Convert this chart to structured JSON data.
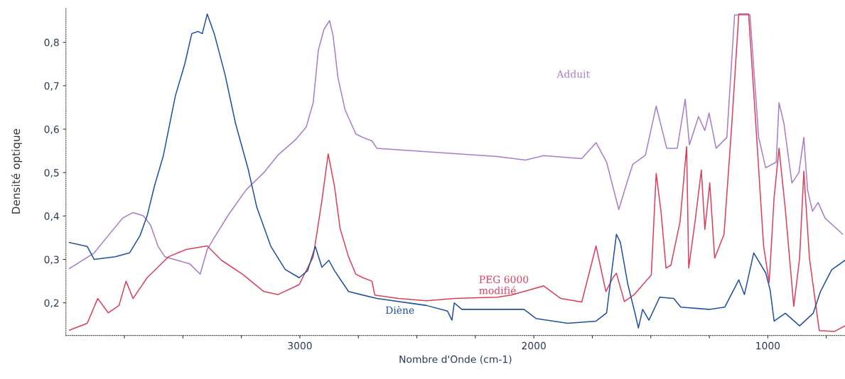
{
  "chart_data": {
    "type": "line",
    "xlabel": "Nombre d'Onde (cm-1)",
    "ylabel": "Densité optique",
    "xlim": [
      4000,
      670
    ],
    "ylim": [
      0.125,
      0.88
    ],
    "xticks": [
      {
        "value": 3750,
        "label": null
      },
      {
        "value": 3500,
        "label": null
      },
      {
        "value": 3250,
        "label": null
      },
      3000,
      {
        "value": 2750,
        "label": null
      },
      {
        "value": 2500,
        "label": null
      },
      {
        "value": 2250,
        "label": null
      },
      2000,
      {
        "value": 1750,
        "label": null
      },
      {
        "value": 1500,
        "label": null
      },
      {
        "value": 1250,
        "label": null
      },
      1000,
      {
        "value": 750,
        "label": null
      }
    ],
    "yticks": [
      {
        "value": 0.2,
        "label": "0,2"
      },
      {
        "value": 0.3,
        "label": "0,3"
      },
      {
        "value": 0.4,
        "label": "0,4"
      },
      {
        "value": 0.5,
        "label": "0,5"
      },
      {
        "value": 0.6,
        "label": "0,6"
      },
      {
        "value": 0.7,
        "label": "0,7"
      },
      {
        "value": 0.8,
        "label": "0,8"
      }
    ],
    "grid": false,
    "legend": false,
    "marker": "none",
    "line_style": "solid",
    "series": [
      {
        "name": "Adduit",
        "color": "#a77cc8",
        "x": [
          3985,
          3879,
          3819,
          3758,
          3713,
          3668,
          3638,
          3607,
          3577,
          3471,
          3426,
          3396,
          3366,
          3305,
          3230,
          3154,
          3094,
          3018,
          2973,
          2943,
          2921,
          2897,
          2873,
          2858,
          2837,
          2807,
          2761,
          2731,
          2692,
          2671,
          2459,
          2157,
          2036,
          1958,
          1795,
          1734,
          1689,
          1637,
          1598,
          1577,
          1523,
          1477,
          1432,
          1387,
          1353,
          1335,
          1296,
          1269,
          1251,
          1221,
          1175,
          1142,
          1076,
          1039,
          1009,
          964,
          952,
          931,
          897,
          867,
          846,
          830,
          809,
          785,
          755,
          680
        ],
        "values": [
          0.279,
          0.315,
          0.355,
          0.395,
          0.408,
          0.4,
          0.379,
          0.331,
          0.306,
          0.29,
          0.266,
          0.323,
          0.35,
          0.403,
          0.46,
          0.5,
          0.54,
          0.576,
          0.605,
          0.661,
          0.782,
          0.83,
          0.85,
          0.815,
          0.718,
          0.645,
          0.589,
          0.581,
          0.573,
          0.556,
          0.548,
          0.537,
          0.529,
          0.539,
          0.532,
          0.569,
          0.524,
          0.415,
          0.484,
          0.519,
          0.54,
          0.653,
          0.556,
          0.556,
          0.669,
          0.564,
          0.629,
          0.597,
          0.637,
          0.556,
          0.581,
          0.863,
          0.863,
          0.581,
          0.511,
          0.524,
          0.661,
          0.613,
          0.476,
          0.5,
          0.581,
          0.46,
          0.411,
          0.431,
          0.395,
          0.358
        ]
      },
      {
        "name": "PEG 6000\nmodifié",
        "color": "#d9405a",
        "x": [
          3985,
          3909,
          3864,
          3819,
          3773,
          3743,
          3713,
          3653,
          3607,
          3562,
          3486,
          3396,
          3335,
          3245,
          3154,
          3094,
          3003,
          2943,
          2906,
          2879,
          2852,
          2828,
          2792,
          2761,
          2731,
          2692,
          2680,
          2580,
          2459,
          2338,
          2157,
          2097,
          1958,
          1885,
          1795,
          1734,
          1692,
          1662,
          1647,
          1613,
          1571,
          1498,
          1477,
          1456,
          1435,
          1414,
          1375,
          1347,
          1338,
          1311,
          1284,
          1269,
          1248,
          1227,
          1187,
          1154,
          1124,
          1082,
          1051,
          1018,
          994,
          973,
          952,
          925,
          889,
          864,
          846,
          822,
          780,
          716,
          670
        ],
        "values": [
          0.137,
          0.153,
          0.21,
          0.177,
          0.194,
          0.25,
          0.21,
          0.258,
          0.282,
          0.306,
          0.323,
          0.331,
          0.298,
          0.266,
          0.226,
          0.219,
          0.242,
          0.306,
          0.435,
          0.543,
          0.468,
          0.371,
          0.306,
          0.266,
          0.258,
          0.25,
          0.218,
          0.21,
          0.205,
          0.21,
          0.213,
          0.218,
          0.239,
          0.21,
          0.202,
          0.331,
          0.226,
          0.258,
          0.268,
          0.203,
          0.219,
          0.264,
          0.498,
          0.408,
          0.28,
          0.287,
          0.387,
          0.56,
          0.28,
          0.387,
          0.506,
          0.369,
          0.476,
          0.303,
          0.358,
          0.61,
          0.865,
          0.865,
          0.61,
          0.331,
          0.247,
          0.442,
          0.556,
          0.415,
          0.192,
          0.303,
          0.503,
          0.303,
          0.136,
          0.134,
          0.147
        ]
      },
      {
        "name": "Diène",
        "color": "#1f4fa0",
        "x": [
          3985,
          3909,
          3879,
          3789,
          3728,
          3683,
          3653,
          3622,
          3583,
          3556,
          3532,
          3492,
          3462,
          3435,
          3417,
          3396,
          3366,
          3320,
          3275,
          3221,
          3184,
          3124,
          3063,
          3003,
          2967,
          2934,
          2906,
          2876,
          2852,
          2792,
          2671,
          2459,
          2369,
          2350,
          2340,
          2308,
          2157,
          2042,
          1991,
          1855,
          1734,
          1689,
          1647,
          1630,
          1598,
          1568,
          1553,
          1535,
          1508,
          1462,
          1402,
          1372,
          1251,
          1184,
          1124,
          1100,
          1060,
          1009,
          990,
          973,
          925,
          864,
          806,
          775,
          727,
          670
        ],
        "values": [
          0.339,
          0.33,
          0.3,
          0.306,
          0.315,
          0.355,
          0.4,
          0.468,
          0.54,
          0.613,
          0.677,
          0.75,
          0.82,
          0.825,
          0.82,
          0.865,
          0.82,
          0.726,
          0.613,
          0.508,
          0.42,
          0.33,
          0.277,
          0.258,
          0.274,
          0.33,
          0.282,
          0.298,
          0.274,
          0.226,
          0.21,
          0.194,
          0.181,
          0.16,
          0.2,
          0.185,
          0.185,
          0.185,
          0.164,
          0.153,
          0.158,
          0.177,
          0.358,
          0.339,
          0.242,
          0.177,
          0.142,
          0.185,
          0.16,
          0.213,
          0.21,
          0.19,
          0.185,
          0.19,
          0.253,
          0.219,
          0.315,
          0.269,
          0.23,
          0.158,
          0.176,
          0.147,
          0.176,
          0.226,
          0.276,
          0.298
        ]
      }
    ]
  }
}
